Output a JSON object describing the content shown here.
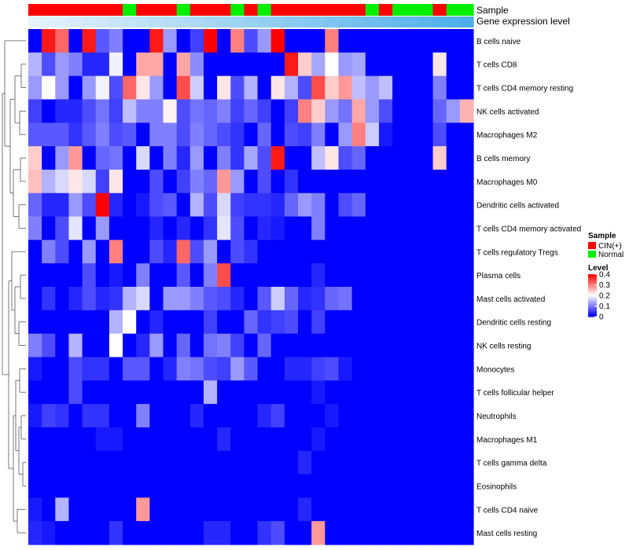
{
  "chart_data": {
    "type": "heatmap",
    "annotation_track_labels": [
      "Sample",
      "Gene expression level"
    ],
    "legend_sample": {
      "title": "Sample",
      "entries": [
        {
          "label": "CIN(+)",
          "color": "#ff0000"
        },
        {
          "label": "Normal",
          "color": "#00ee00"
        }
      ]
    },
    "legend_level": {
      "title": "Level",
      "ticks": [
        "0.4",
        "0.3",
        "0.2",
        "0.1",
        "0"
      ],
      "tick_values": [
        0.4,
        0.3,
        0.2,
        0.1,
        0
      ],
      "range": [
        0,
        0.4
      ]
    },
    "sample_groups": [
      "CIN(+)",
      "CIN(+)",
      "CIN(+)",
      "CIN(+)",
      "CIN(+)",
      "CIN(+)",
      "CIN(+)",
      "Normal",
      "CIN(+)",
      "CIN(+)",
      "CIN(+)",
      "Normal",
      "CIN(+)",
      "CIN(+)",
      "CIN(+)",
      "Normal",
      "CIN(+)",
      "Normal",
      "CIN(+)",
      "CIN(+)",
      "CIN(+)",
      "CIN(+)",
      "CIN(+)",
      "CIN(+)",
      "CIN(+)",
      "Normal",
      "CIN(+)",
      "Normal",
      "Normal",
      "Normal",
      "CIN(+)",
      "Normal",
      "Normal"
    ],
    "gene_expression_level": [
      0.02,
      0.05,
      0.08,
      0.11,
      0.14,
      0.17,
      0.2,
      0.23,
      0.26,
      0.29,
      0.32,
      0.35,
      0.38,
      0.41,
      0.44,
      0.47,
      0.5,
      0.53,
      0.56,
      0.59,
      0.62,
      0.65,
      0.68,
      0.71,
      0.74,
      0.77,
      0.8,
      0.83,
      0.86,
      0.89,
      0.92,
      0.95,
      0.98
    ],
    "rows": [
      "B cells naive",
      "T cells CD8",
      "T cells CD4 memory resting",
      "NK cells activated",
      "Macrophages M2",
      "B cells memory",
      "Macrophages M0",
      "Dendritic cells activated",
      "T cells CD4 memory activated",
      "T cells regulatory  Tregs",
      "Plasma cells",
      "Mast cells activated",
      "Dendritic cells resting",
      "NK cells resting",
      "Monocytes",
      "T cells follicular helper",
      "Neutrophils",
      "Macrophages M1",
      "T cells gamma delta",
      "Eosinophils",
      "T cells CD4 naive",
      "Mast cells resting"
    ],
    "values": [
      [
        0.0,
        0.38,
        0.32,
        0.0,
        0.38,
        0.07,
        0.1,
        0.0,
        0.0,
        0.38,
        0.12,
        0.0,
        0.05,
        0.4,
        0.0,
        0.3,
        0.06,
        0.12,
        0.4,
        0.0,
        0.0,
        0.0,
        0.3,
        0.0,
        0.0,
        0.0,
        0.0,
        0.0,
        0.0,
        0.0,
        0.0,
        0.0,
        0.0
      ],
      [
        0.14,
        0.06,
        0.12,
        0.1,
        0.03,
        0.03,
        0.19,
        0.0,
        0.27,
        0.27,
        0.0,
        0.27,
        0.11,
        0.0,
        0.0,
        0.0,
        0.0,
        0.0,
        0.0,
        0.38,
        0.24,
        0.13,
        0.2,
        0.12,
        0.13,
        0.0,
        0.0,
        0.0,
        0.0,
        0.0,
        0.22,
        0.0,
        0.0
      ],
      [
        0.12,
        0.2,
        0.12,
        0.0,
        0.12,
        0.19,
        0.06,
        0.32,
        0.22,
        0.12,
        0.0,
        0.34,
        0.16,
        0.0,
        0.22,
        0.06,
        0.14,
        0.0,
        0.22,
        0.14,
        0.06,
        0.34,
        0.24,
        0.28,
        0.15,
        0.12,
        0.15,
        0.0,
        0.0,
        0.0,
        0.1,
        0.0,
        0.0
      ],
      [
        0.05,
        0.0,
        0.03,
        0.03,
        0.06,
        0.09,
        0.05,
        0.15,
        0.1,
        0.1,
        0.21,
        0.06,
        0.09,
        0.08,
        0.1,
        0.05,
        0.08,
        0.05,
        0.0,
        0.05,
        0.3,
        0.24,
        0.12,
        0.09,
        0.27,
        0.12,
        0.06,
        0.0,
        0.0,
        0.0,
        0.08,
        0.12,
        0.26
      ],
      [
        0.07,
        0.07,
        0.07,
        0.04,
        0.07,
        0.1,
        0.06,
        0.07,
        0.0,
        0.1,
        0.1,
        0.06,
        0.1,
        0.08,
        0.06,
        0.04,
        0.0,
        0.08,
        0.0,
        0.06,
        0.05,
        0.1,
        0.0,
        0.12,
        0.3,
        0.16,
        0.02,
        0.0,
        0.0,
        0.0,
        0.06,
        0.0,
        0.0
      ],
      [
        0.24,
        0.0,
        0.12,
        0.28,
        0.0,
        0.08,
        0.09,
        0.0,
        0.17,
        0.0,
        0.1,
        0.03,
        0.12,
        0.0,
        0.1,
        0.04,
        0.13,
        0.06,
        0.38,
        0.0,
        0.0,
        0.15,
        0.22,
        0.06,
        0.08,
        0.0,
        0.0,
        0.0,
        0.0,
        0.0,
        0.24,
        0.0,
        0.0
      ],
      [
        0.25,
        0.14,
        0.17,
        0.22,
        0.17,
        0.05,
        0.22,
        0.0,
        0.0,
        0.06,
        0.0,
        0.05,
        0.1,
        0.08,
        0.28,
        0.12,
        0.0,
        0.06,
        0.0,
        0.04,
        0.0,
        0.0,
        0.0,
        0.0,
        0.0,
        0.0,
        0.0,
        0.0,
        0.0,
        0.0,
        0.0,
        0.0,
        0.0
      ],
      [
        0.08,
        0.03,
        0.03,
        0.12,
        0.06,
        0.4,
        0.03,
        0.0,
        0.02,
        0.06,
        0.07,
        0.0,
        0.14,
        0.06,
        0.17,
        0.05,
        0.04,
        0.04,
        0.03,
        0.08,
        0.12,
        0.1,
        0.0,
        0.06,
        0.08,
        0.0,
        0.0,
        0.0,
        0.0,
        0.0,
        0.0,
        0.0,
        0.0
      ],
      [
        0.1,
        0.0,
        0.06,
        0.18,
        0.0,
        0.12,
        0.0,
        0.0,
        0.0,
        0.03,
        0.0,
        0.03,
        0.0,
        0.04,
        0.18,
        0.06,
        0.0,
        0.03,
        0.02,
        0.0,
        0.0,
        0.1,
        0.0,
        0.0,
        0.0,
        0.0,
        0.0,
        0.0,
        0.0,
        0.0,
        0.0,
        0.0,
        0.0
      ],
      [
        0.0,
        0.1,
        0.06,
        0.0,
        0.12,
        0.0,
        0.3,
        0.0,
        0.0,
        0.06,
        0.03,
        0.32,
        0.06,
        0.12,
        0.0,
        0.06,
        0.04,
        0.0,
        0.0,
        0.0,
        0.0,
        0.0,
        0.0,
        0.0,
        0.0,
        0.0,
        0.0,
        0.0,
        0.0,
        0.0,
        0.0,
        0.0,
        0.0
      ],
      [
        0.0,
        0.0,
        0.0,
        0.0,
        0.06,
        0.0,
        0.02,
        0.0,
        0.1,
        0.0,
        0.0,
        0.07,
        0.0,
        0.1,
        0.34,
        0.0,
        0.0,
        0.0,
        0.0,
        0.0,
        0.0,
        0.03,
        0.0,
        0.0,
        0.0,
        0.0,
        0.0,
        0.0,
        0.0,
        0.0,
        0.0,
        0.0,
        0.0
      ],
      [
        0.0,
        0.04,
        0.0,
        0.03,
        0.06,
        0.03,
        0.04,
        0.14,
        0.17,
        0.0,
        0.12,
        0.12,
        0.1,
        0.07,
        0.06,
        0.03,
        0.0,
        0.07,
        0.16,
        0.08,
        0.03,
        0.04,
        0.08,
        0.09,
        0.0,
        0.0,
        0.0,
        0.0,
        0.0,
        0.0,
        0.0,
        0.0,
        0.0
      ],
      [
        0.0,
        0.0,
        0.0,
        0.0,
        0.0,
        0.0,
        0.14,
        0.2,
        0.0,
        0.03,
        0.0,
        0.0,
        0.0,
        0.05,
        0.0,
        0.0,
        0.08,
        0.04,
        0.05,
        0.06,
        0.0,
        0.05,
        0.0,
        0.0,
        0.0,
        0.0,
        0.0,
        0.0,
        0.0,
        0.0,
        0.0,
        0.0,
        0.0
      ],
      [
        0.1,
        0.06,
        0.0,
        0.14,
        0.0,
        0.0,
        0.2,
        0.0,
        0.03,
        0.12,
        0.0,
        0.08,
        0.0,
        0.09,
        0.1,
        0.05,
        0.0,
        0.08,
        0.0,
        0.0,
        0.0,
        0.0,
        0.0,
        0.0,
        0.0,
        0.0,
        0.0,
        0.0,
        0.0,
        0.0,
        0.0,
        0.0,
        0.0
      ],
      [
        0.02,
        0.0,
        0.0,
        0.06,
        0.04,
        0.04,
        0.0,
        0.07,
        0.07,
        0.0,
        0.03,
        0.1,
        0.09,
        0.06,
        0.05,
        0.12,
        0.07,
        0.0,
        0.0,
        0.03,
        0.03,
        0.05,
        0.06,
        0.02,
        0.0,
        0.0,
        0.0,
        0.0,
        0.0,
        0.0,
        0.0,
        0.0,
        0.0
      ],
      [
        0.0,
        0.0,
        0.0,
        0.06,
        0.0,
        0.0,
        0.0,
        0.0,
        0.0,
        0.0,
        0.0,
        0.0,
        0.0,
        0.14,
        0.0,
        0.0,
        0.0,
        0.0,
        0.0,
        0.0,
        0.0,
        0.02,
        0.0,
        0.0,
        0.0,
        0.0,
        0.0,
        0.0,
        0.0,
        0.0,
        0.0,
        0.0,
        0.0
      ],
      [
        0.02,
        0.05,
        0.04,
        0.0,
        0.04,
        0.04,
        0.0,
        0.0,
        0.1,
        0.0,
        0.0,
        0.0,
        0.03,
        0.0,
        0.0,
        0.0,
        0.0,
        0.03,
        0.05,
        0.0,
        0.0,
        0.0,
        0.02,
        0.0,
        0.0,
        0.0,
        0.0,
        0.0,
        0.0,
        0.0,
        0.0,
        0.0,
        0.0
      ],
      [
        0.0,
        0.0,
        0.0,
        0.0,
        0.0,
        0.02,
        0.02,
        0.0,
        0.0,
        0.0,
        0.0,
        0.0,
        0.0,
        0.0,
        0.03,
        0.0,
        0.0,
        0.0,
        0.0,
        0.0,
        0.0,
        0.02,
        0.0,
        0.0,
        0.0,
        0.0,
        0.0,
        0.0,
        0.0,
        0.0,
        0.0,
        0.0,
        0.0
      ],
      [
        0.0,
        0.0,
        0.0,
        0.0,
        0.0,
        0.0,
        0.0,
        0.0,
        0.0,
        0.0,
        0.0,
        0.0,
        0.0,
        0.0,
        0.0,
        0.0,
        0.0,
        0.0,
        0.0,
        0.0,
        0.03,
        0.0,
        0.0,
        0.0,
        0.0,
        0.0,
        0.0,
        0.0,
        0.0,
        0.0,
        0.0,
        0.0,
        0.0
      ],
      [
        0.0,
        0.0,
        0.0,
        0.0,
        0.0,
        0.0,
        0.0,
        0.0,
        0.0,
        0.0,
        0.0,
        0.0,
        0.0,
        0.0,
        0.0,
        0.0,
        0.0,
        0.0,
        0.0,
        0.0,
        0.0,
        0.0,
        0.0,
        0.0,
        0.0,
        0.0,
        0.0,
        0.0,
        0.0,
        0.0,
        0.0,
        0.0,
        0.0
      ],
      [
        0.02,
        0.0,
        0.14,
        0.0,
        0.0,
        0.0,
        0.0,
        0.0,
        0.28,
        0.0,
        0.0,
        0.0,
        0.0,
        0.0,
        0.0,
        0.0,
        0.0,
        0.0,
        0.0,
        0.0,
        0.03,
        0.0,
        0.0,
        0.0,
        0.0,
        0.0,
        0.0,
        0.0,
        0.0,
        0.0,
        0.0,
        0.0,
        0.0
      ],
      [
        0.03,
        0.02,
        0.0,
        0.0,
        0.0,
        0.0,
        0.04,
        0.0,
        0.0,
        0.0,
        0.0,
        0.0,
        0.0,
        0.03,
        0.03,
        0.0,
        0.0,
        0.04,
        0.06,
        0.0,
        0.0,
        0.28,
        0.0,
        0.0,
        0.0,
        0.0,
        0.0,
        0.0,
        0.0,
        0.0,
        0.0,
        0.0,
        0.0
      ]
    ]
  }
}
